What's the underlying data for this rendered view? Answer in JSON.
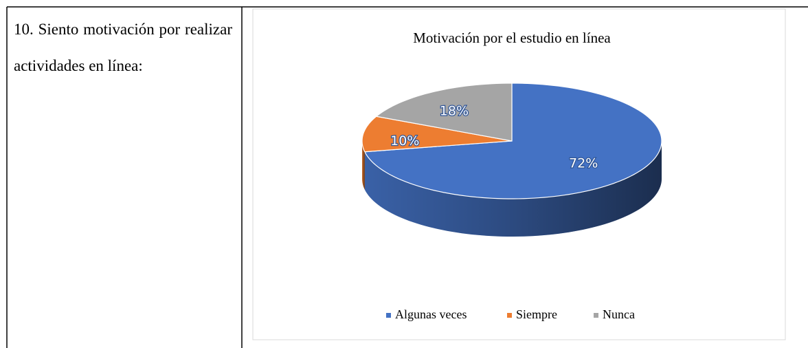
{
  "question": "10. Siento motivación por realizar actividades en línea:",
  "chart_data": {
    "type": "pie",
    "title": "Motivación por el estudio en línea",
    "categories": [
      "Algunas veces",
      "Siempre",
      "Nunca"
    ],
    "values": [
      72,
      10,
      18
    ],
    "value_labels": [
      "72%",
      "10%",
      "18%"
    ],
    "colors": [
      "#4472c4",
      "#ed7d31",
      "#a5a5a5"
    ],
    "legend": "bottom"
  }
}
